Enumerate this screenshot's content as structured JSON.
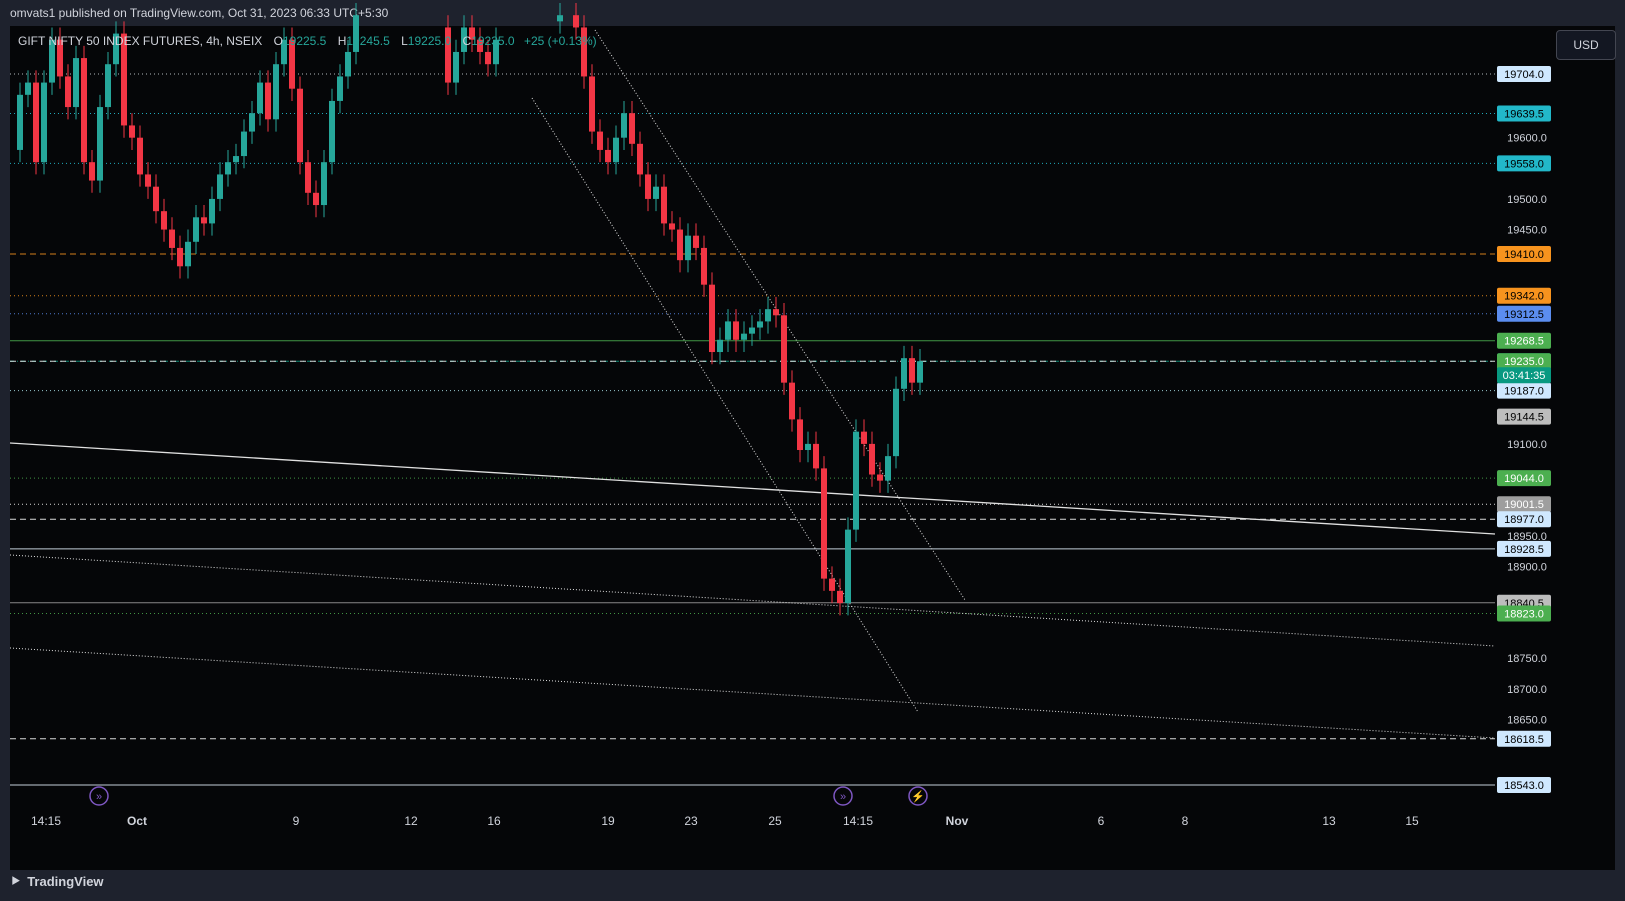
{
  "header": {
    "publisher": "omvats1 published on TradingView.com, Oct 31, 2023 06:33 UTC+5:30"
  },
  "footer": {
    "brand": "TradingView"
  },
  "currency_button": "USD",
  "chart_data": {
    "type": "candlestick",
    "symbol": "GIFT NIFTY 50 INDEX FUTURES, 4h, NSEIX",
    "ohlc_readout": {
      "O": "19225.5",
      "H": "19245.5",
      "L": "19225.0",
      "C": "19235.0",
      "change": "+25 (+0.13%)"
    },
    "y_axis_ticks": [
      "19600.0",
      "19500.0",
      "19450.0",
      "19100.0",
      "18950.0",
      "18900.0",
      "18750.0",
      "18700.0",
      "18650.0"
    ],
    "y_range": [
      18543,
      19790
    ],
    "x_axis_labels": [
      "14:15",
      "Oct",
      "9",
      "12",
      "16",
      "19",
      "23",
      "25",
      "14:15",
      "Nov",
      "6",
      "8",
      "13",
      "15"
    ],
    "horizontal_levels": [
      {
        "value": "19704.0",
        "color": "#cfd8dc",
        "label_bg": "#cfe8ff",
        "label_fg": "#000000",
        "style": "dotted"
      },
      {
        "value": "19639.5",
        "color": "#26c6da",
        "label_bg": "#22b8c9",
        "label_fg": "#000000",
        "style": "dotted"
      },
      {
        "value": "19558.0",
        "color": "#26c6da",
        "label_bg": "#22b8c9",
        "label_fg": "#000000",
        "style": "dotted"
      },
      {
        "value": "19410.0",
        "color": "#f7931e",
        "label_bg": "#f7931e",
        "label_fg": "#000000",
        "style": "dashed"
      },
      {
        "value": "19342.0",
        "color": "#f7931e",
        "label_bg": "#f7931e",
        "label_fg": "#000000",
        "style": "dotted"
      },
      {
        "value": "19312.5",
        "color": "#5b8def",
        "label_bg": "#5b8def",
        "label_fg": "#000000",
        "style": "dotted"
      },
      {
        "value": "19268.5",
        "color": "#4caf50",
        "label_bg": "#4caf50",
        "label_fg": "#ffffff",
        "style": "solid"
      },
      {
        "value": "19235.0",
        "color": "#089981",
        "label_bg": "#089981",
        "label_fg": "#ffffff",
        "style": "dashdot"
      },
      {
        "value": "19235.0",
        "color": "#ffffff",
        "label_bg": "#4caf50",
        "label_fg": "#ffffff",
        "style": "dashed"
      },
      {
        "value": "19187.0",
        "color": "#b2ebf2",
        "label_bg": "#cfe8ff",
        "label_fg": "#000000",
        "style": "dotted"
      },
      {
        "value": "19144.5",
        "color": "#9e9e9e",
        "label_bg": "#bdbdbd",
        "label_fg": "#000000",
        "style": "none"
      },
      {
        "value": "19044.0",
        "color": "#4caf50",
        "label_bg": "#4caf50",
        "label_fg": "#ffffff",
        "style": "dotted"
      },
      {
        "value": "19001.5",
        "color": "#ffffff",
        "label_bg": "#9e9e9e",
        "label_fg": "#ffffff",
        "style": "dotted"
      },
      {
        "value": "18977.0",
        "color": "#ffffff",
        "label_bg": "#cfe8ff",
        "label_fg": "#000000",
        "style": "dashed"
      },
      {
        "value": "18928.5",
        "color": "#e3f2fd",
        "label_bg": "#cfe8ff",
        "label_fg": "#000000",
        "style": "solid"
      },
      {
        "value": "18840.5",
        "color": "#9e9e9e",
        "label_bg": "#bdbdbd",
        "label_fg": "#000000",
        "style": "solid"
      },
      {
        "value": "18823.0",
        "color": "#4caf50",
        "label_bg": "#4caf50",
        "label_fg": "#ffffff",
        "style": "dotted"
      },
      {
        "value": "18618.5",
        "color": "#ffffff",
        "label_bg": "#cfe8ff",
        "label_fg": "#000000",
        "style": "dashed"
      },
      {
        "value": "18543.0",
        "color": "#e3f2fd",
        "label_bg": "#cfe8ff",
        "label_fg": "#000000",
        "style": "solid"
      }
    ],
    "countdown": "03:41:35",
    "colors": {
      "up": "#26a69a",
      "down": "#f23645"
    }
  }
}
